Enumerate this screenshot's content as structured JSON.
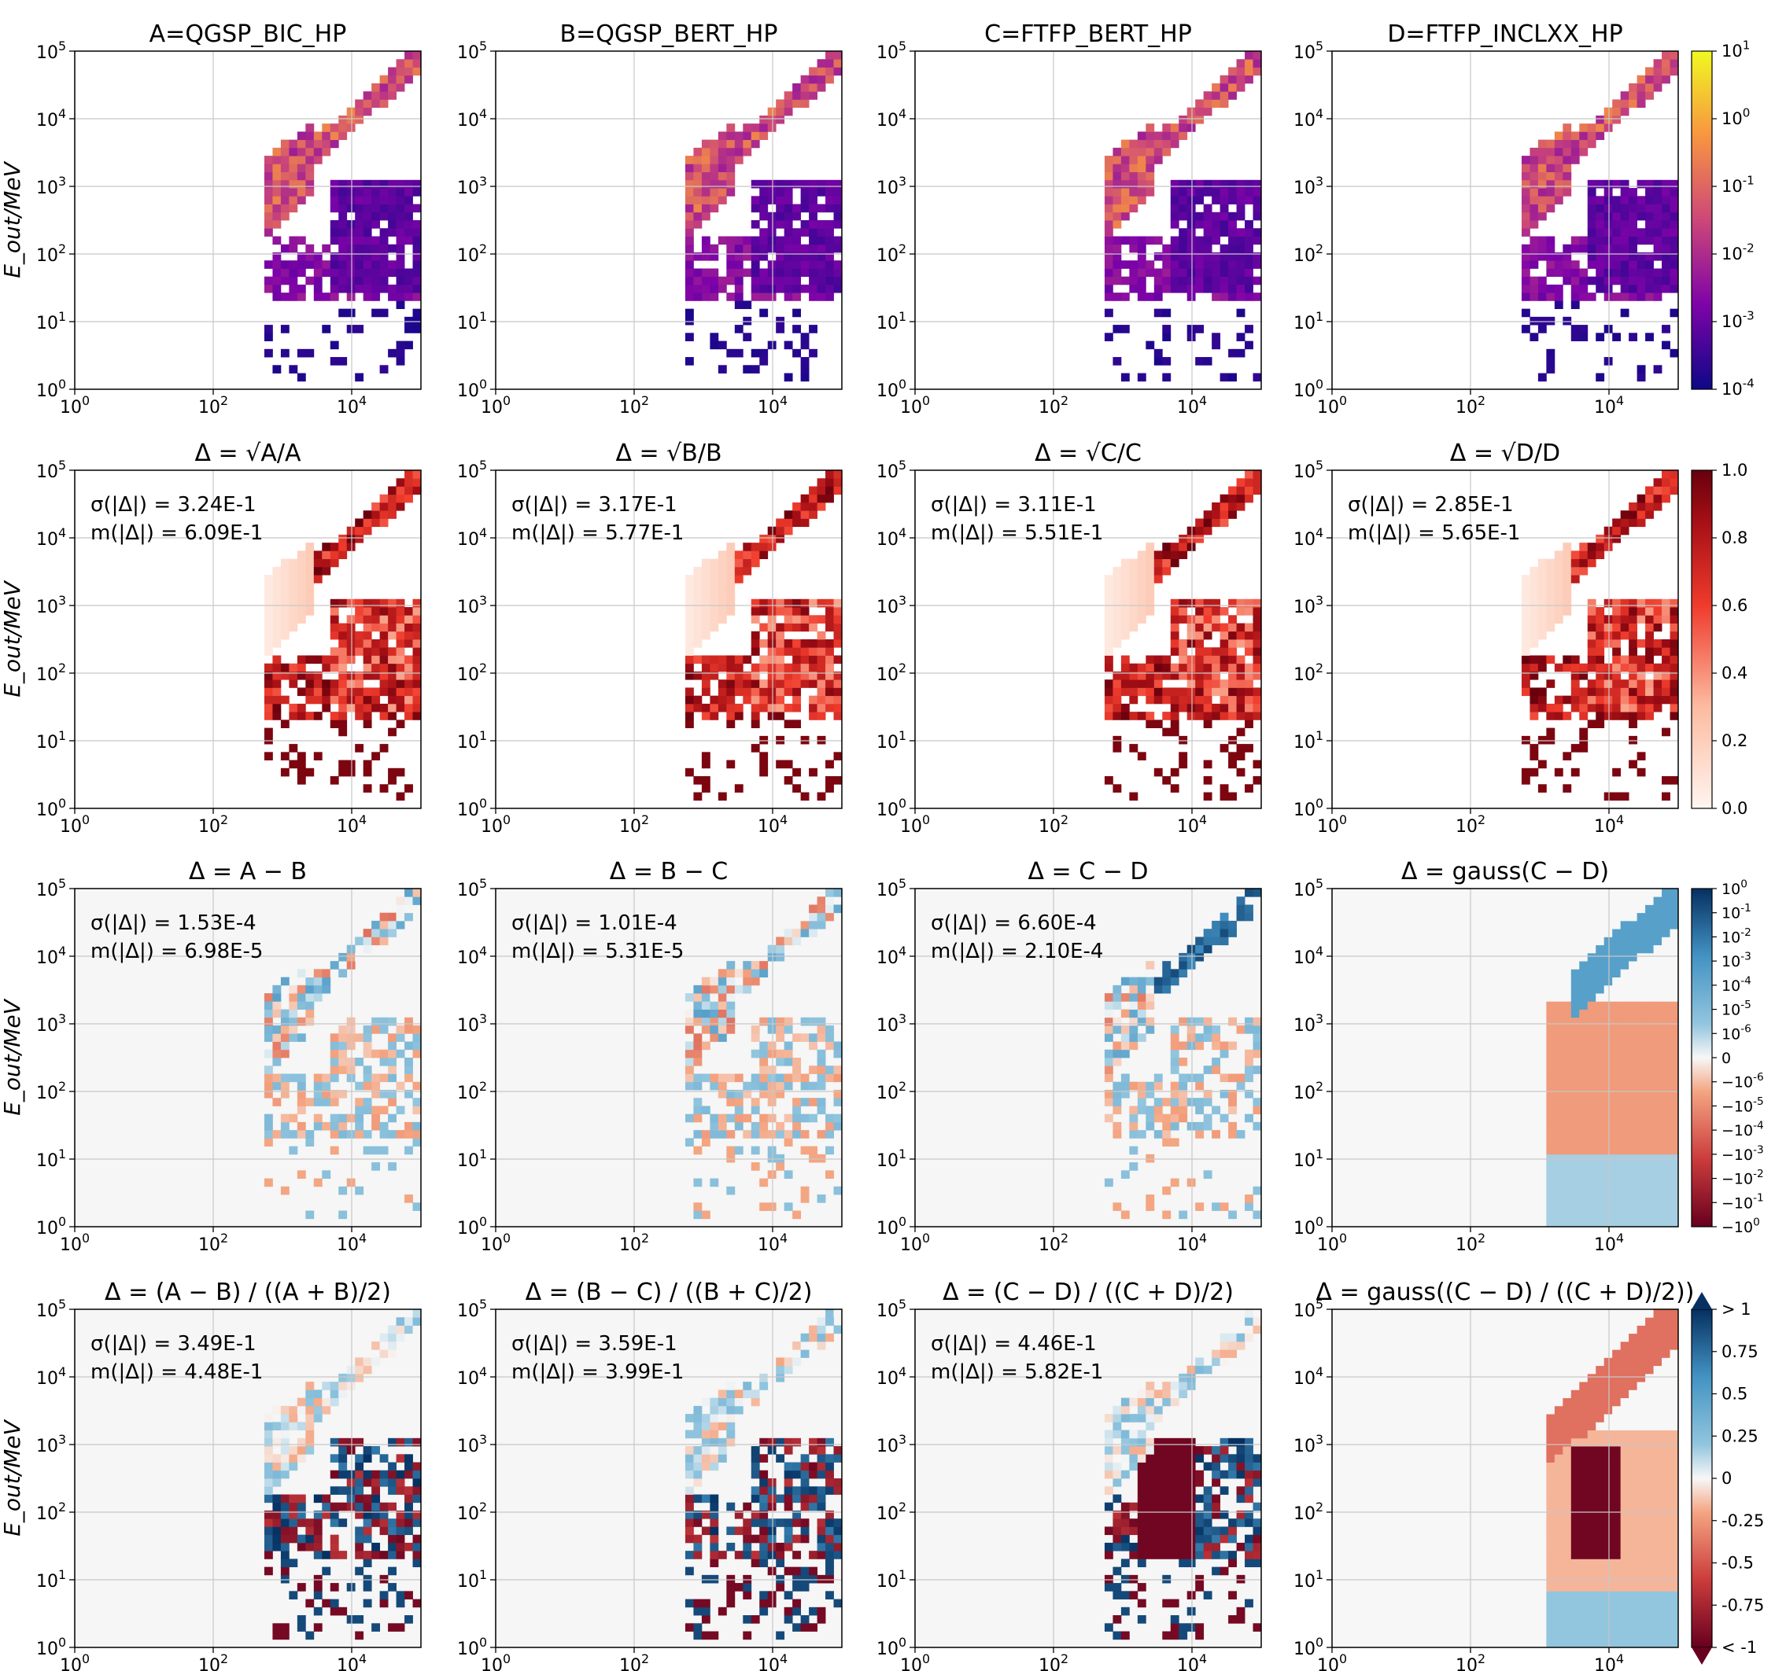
{
  "x_axis_label": "E_in/MeV",
  "y_axis_label": "E_out/MeV",
  "axis_ticks": {
    "exponents": [
      0,
      2,
      4
    ],
    "y_exponents": [
      0,
      1,
      2,
      3,
      4,
      5
    ],
    "base": "10"
  },
  "stat_labels": {
    "sigma": "σ(|Δ|) = ",
    "mean": "m(|Δ|) = "
  },
  "rows": [
    {
      "panels": [
        {
          "title": "A=QGSP_BIC_HP",
          "stats": null,
          "pattern": "hist",
          "seed": 11
        },
        {
          "title": "B=QGSP_BERT_HP",
          "stats": null,
          "pattern": "hist",
          "seed": 12
        },
        {
          "title": "C=FTFP_BERT_HP",
          "stats": null,
          "pattern": "hist",
          "seed": 13
        },
        {
          "title": "D=FTFP_INCLXX_HP",
          "stats": null,
          "pattern": "hist",
          "seed": 14
        }
      ],
      "colorbar": {
        "scheme": "plasma",
        "tick_labels": [
          "10^1",
          "10^0",
          "10^-1",
          "10^-2",
          "10^-3",
          "10^-4"
        ]
      }
    },
    {
      "panels": [
        {
          "title": "Δ = √A/A",
          "stats": {
            "sigma": "3.24E-1",
            "mean": "6.09E-1"
          },
          "pattern": "reds",
          "seed": 21
        },
        {
          "title": "Δ = √B/B",
          "stats": {
            "sigma": "3.17E-1",
            "mean": "5.77E-1"
          },
          "pattern": "reds",
          "seed": 22
        },
        {
          "title": "Δ = √C/C",
          "stats": {
            "sigma": "3.11E-1",
            "mean": "5.51E-1"
          },
          "pattern": "reds",
          "seed": 23
        },
        {
          "title": "Δ = √D/D",
          "stats": {
            "sigma": "2.85E-1",
            "mean": "5.65E-1"
          },
          "pattern": "reds",
          "seed": 24
        }
      ],
      "colorbar": {
        "scheme": "reds",
        "tick_labels": [
          "1.0",
          "0.8",
          "0.6",
          "0.4",
          "0.2",
          "0.0"
        ]
      }
    },
    {
      "panels": [
        {
          "title": "Δ = A − B",
          "stats": {
            "sigma": "1.53E-4",
            "mean": "6.98E-5"
          },
          "pattern": "diff",
          "seed": 31
        },
        {
          "title": "Δ = B − C",
          "stats": {
            "sigma": "1.01E-4",
            "mean": "5.31E-5"
          },
          "pattern": "diff",
          "seed": 32
        },
        {
          "title": "Δ = C − D",
          "stats": {
            "sigma": "6.60E-4",
            "mean": "2.10E-4"
          },
          "pattern": "diff_strong",
          "seed": 33
        },
        {
          "title": "Δ = gauss(C − D)",
          "stats": null,
          "pattern": "gauss_diff",
          "seed": 34
        }
      ],
      "colorbar": {
        "scheme": "rdbu",
        "tick_labels": [
          "10^0",
          "10^-1",
          "10^-2",
          "10^-3",
          "10^-4",
          "10^-5",
          "10^-6",
          "0",
          "−10^-6",
          "−10^-5",
          "−10^-4",
          "−10^-3",
          "−10^-2",
          "−10^-1",
          "−10^0"
        ]
      }
    },
    {
      "panels": [
        {
          "title": "Δ = (A − B) / ((A + B)/2)",
          "stats": {
            "sigma": "3.49E-1",
            "mean": "4.48E-1"
          },
          "pattern": "rel",
          "seed": 41
        },
        {
          "title": "Δ = (B − C) / ((B + C)/2)",
          "stats": {
            "sigma": "3.59E-1",
            "mean": "3.99E-1"
          },
          "pattern": "rel",
          "seed": 42
        },
        {
          "title": "Δ = (C − D) / ((C + D)/2)",
          "stats": {
            "sigma": "4.46E-1",
            "mean": "5.82E-1"
          },
          "pattern": "rel_strong",
          "seed": 43
        },
        {
          "title": "Δ = gauss((C − D) / ((C + D)/2))",
          "stats": null,
          "pattern": "gauss_rel",
          "seed": 44
        }
      ],
      "colorbar": {
        "scheme": "rdbu_ext",
        "tick_labels": [
          "> 1",
          "0.75",
          "0.5",
          "0.25",
          "0",
          "-0.25",
          "-0.5",
          "-0.75",
          "< -1"
        ]
      }
    }
  ],
  "chart_data": {
    "type": "heatmap",
    "title": "",
    "xlabel": "E_in/MeV",
    "ylabel": "E_out/MeV",
    "x_scale": "log",
    "y_scale": "log",
    "xlim": [
      1,
      100000
    ],
    "ylim": [
      1,
      100000
    ],
    "grid": true,
    "layout": "4x4 grid of panels, colorbar at right of each row",
    "panels": [
      {
        "row": 1,
        "title": "A=QGSP_BIC_HP",
        "colorbar_range": [
          "10^-4",
          "10^1"
        ],
        "scale": "log"
      },
      {
        "row": 1,
        "title": "B=QGSP_BERT_HP",
        "colorbar_range": [
          "10^-4",
          "10^1"
        ],
        "scale": "log"
      },
      {
        "row": 1,
        "title": "C=FTFP_BERT_HP",
        "colorbar_range": [
          "10^-4",
          "10^1"
        ],
        "scale": "log"
      },
      {
        "row": 1,
        "title": "D=FTFP_INCLXX_HP",
        "colorbar_range": [
          "10^-4",
          "10^1"
        ],
        "scale": "log"
      },
      {
        "row": 2,
        "title": "Δ = √A/A",
        "sigma": 0.324,
        "mean": 0.609,
        "colorbar_range": [
          0,
          1
        ]
      },
      {
        "row": 2,
        "title": "Δ = √B/B",
        "sigma": 0.317,
        "mean": 0.577,
        "colorbar_range": [
          0,
          1
        ]
      },
      {
        "row": 2,
        "title": "Δ = √C/C",
        "sigma": 0.311,
        "mean": 0.551,
        "colorbar_range": [
          0,
          1
        ]
      },
      {
        "row": 2,
        "title": "Δ = √D/D",
        "sigma": 0.285,
        "mean": 0.565,
        "colorbar_range": [
          0,
          1
        ]
      },
      {
        "row": 3,
        "title": "Δ = A − B",
        "sigma": 0.000153,
        "mean": 6.98e-05,
        "colorbar": "symlog ±10^0"
      },
      {
        "row": 3,
        "title": "Δ = B − C",
        "sigma": 0.000101,
        "mean": 5.31e-05,
        "colorbar": "symlog ±10^0"
      },
      {
        "row": 3,
        "title": "Δ = C − D",
        "sigma": 0.00066,
        "mean": 0.00021,
        "colorbar": "symlog ±10^0"
      },
      {
        "row": 3,
        "title": "Δ = gauss(C − D)",
        "colorbar": "symlog ±10^0"
      },
      {
        "row": 4,
        "title": "Δ = (A − B) / ((A + B)/2)",
        "sigma": 0.349,
        "mean": 0.448,
        "colorbar_range": [
          -1,
          1
        ]
      },
      {
        "row": 4,
        "title": "Δ = (B − C) / ((B + C)/2)",
        "sigma": 0.359,
        "mean": 0.399,
        "colorbar_range": [
          -1,
          1
        ]
      },
      {
        "row": 4,
        "title": "Δ = (C − D) / ((C + D)/2)",
        "sigma": 0.446,
        "mean": 0.582,
        "colorbar_range": [
          -1,
          1
        ]
      },
      {
        "row": 4,
        "title": "Δ = gauss((C − D) / ((C + D)/2))",
        "colorbar_range": [
          -1,
          1
        ]
      }
    ]
  }
}
